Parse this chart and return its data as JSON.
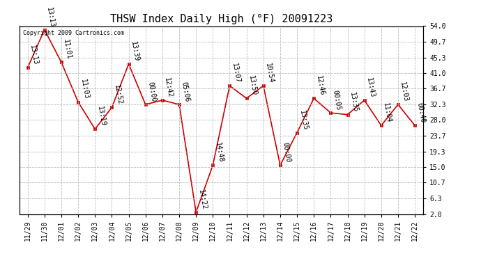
{
  "title": "THSW Index Daily High (°F) 20091223",
  "watermark": "Copyright 2009 Cartronics.com",
  "x_labels": [
    "11/29",
    "11/30",
    "12/01",
    "12/02",
    "12/03",
    "12/04",
    "12/05",
    "12/06",
    "12/07",
    "12/08",
    "12/09",
    "12/10",
    "12/11",
    "12/12",
    "12/13",
    "12/14",
    "12/15",
    "12/16",
    "12/17",
    "12/18",
    "12/19",
    "12/20",
    "12/21",
    "12/22"
  ],
  "y_values": [
    42.5,
    53.0,
    44.0,
    33.0,
    25.5,
    31.5,
    43.5,
    32.3,
    33.5,
    32.3,
    2.5,
    15.5,
    37.5,
    34.0,
    37.5,
    15.5,
    24.5,
    34.0,
    30.0,
    29.5,
    33.5,
    26.5,
    32.3,
    26.5
  ],
  "point_labels": [
    "13:13",
    "13:13",
    "11:01",
    "11:03",
    "13:19",
    "12:52",
    "13:39",
    "00:00",
    "12:42",
    "05:06",
    "14:22",
    "14:48",
    "13:07",
    "13:50",
    "10:54",
    "00:00",
    "13:35",
    "12:46",
    "00:05",
    "13:35",
    "13:43",
    "11:04",
    "12:03",
    "00:40"
  ],
  "y_ticks": [
    2.0,
    6.3,
    10.7,
    15.0,
    19.3,
    23.7,
    28.0,
    32.3,
    36.7,
    41.0,
    45.3,
    49.7,
    54.0
  ],
  "y_min": 2.0,
  "y_max": 54.0,
  "line_color": "#cc0000",
  "marker_color": "#cc0000",
  "bg_color": "#ffffff",
  "grid_color": "#bbbbbb",
  "title_fontsize": 11,
  "label_fontsize": 7,
  "point_label_fontsize": 7,
  "watermark_fontsize": 6
}
